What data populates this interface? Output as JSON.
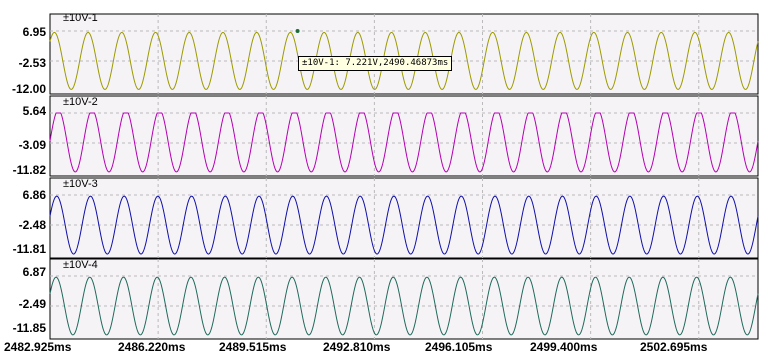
{
  "channels": [
    {
      "name": "±10V-1",
      "color": "#9b9b00",
      "ticks": [
        "6.95",
        "-2.53",
        "-12.00"
      ],
      "ymax": 6.95,
      "ymid": -2.53,
      "ymin": -12.0
    },
    {
      "name": "±10V-2",
      "color": "#b400b4",
      "ticks": [
        "5.64",
        "-3.09",
        "-11.82"
      ],
      "ymax": 5.64,
      "ymid": -3.09,
      "ymin": -11.82
    },
    {
      "name": "±10V-3",
      "color": "#1010a8",
      "ticks": [
        "6.86",
        "-2.48",
        "-11.81"
      ],
      "ymax": 6.86,
      "ymid": -2.48,
      "ymin": -11.81
    },
    {
      "name": "±10V-4",
      "color": "#1f6a5c",
      "ticks": [
        "6.87",
        "-2.49",
        "-11.85"
      ],
      "ymax": 6.87,
      "ymid": -2.49,
      "ymin": -11.85
    }
  ],
  "x_axis": {
    "unit": "ms",
    "ticks": [
      "2482.925ms",
      "2486.220ms",
      "2489.515ms",
      "2492.810ms",
      "2496.105ms",
      "2499.400ms",
      "2502.695ms"
    ],
    "tick_values": [
      2482.925,
      2486.22,
      2489.515,
      2492.81,
      2496.105,
      2499.4,
      2502.695
    ],
    "range": [
      2482.925,
      2504.5
    ]
  },
  "signal": {
    "cycles_visible": 21.0,
    "amplitude_v": 9.0,
    "offset_v": -2.5
  },
  "cursor": {
    "label": "±10V-1: 7.221V,2490.46873ms",
    "channel": 0,
    "time_ms": 2490.46873,
    "value_v": 7.221
  },
  "panel_background": "#f6f3f6",
  "grid_color": "#b9b9b9"
}
